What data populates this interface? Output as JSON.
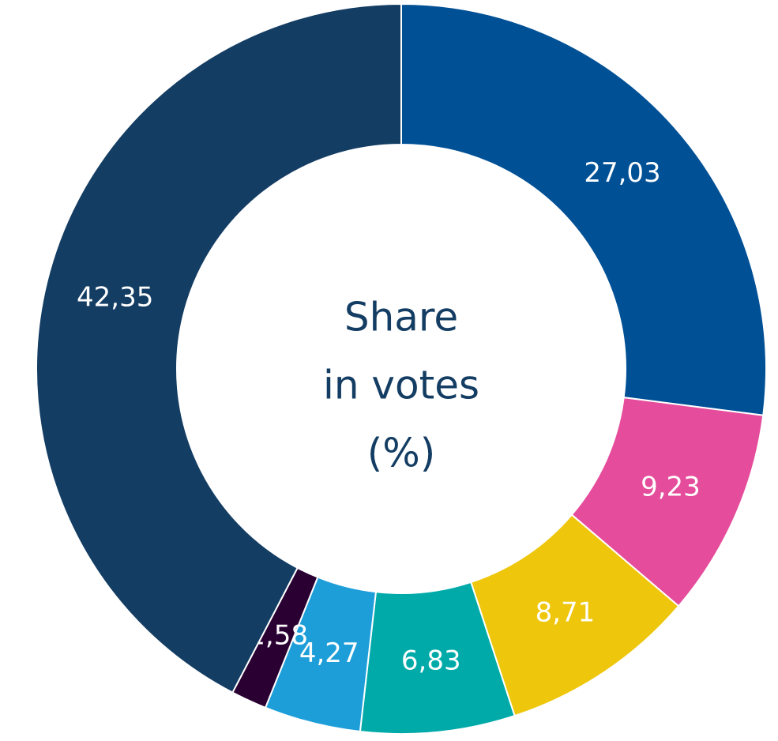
{
  "chart_data": {
    "type": "donut",
    "center_label": [
      "Share",
      "in votes",
      "(%)"
    ],
    "values": [
      27.03,
      9.23,
      8.71,
      6.83,
      4.27,
      1.58,
      42.35
    ],
    "value_labels": [
      "27,03",
      "9,23",
      "8,71",
      "6,83",
      "4,27",
      "1,58",
      "42,35"
    ],
    "colors": [
      "#005096",
      "#e54c9b",
      "#eec60b",
      "#00aaa9",
      "#1e9ed9",
      "#2a0033",
      "#143d63"
    ]
  }
}
